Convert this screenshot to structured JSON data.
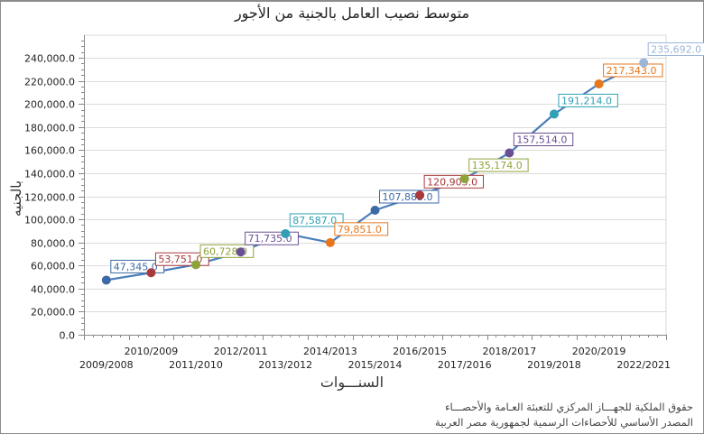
{
  "title": "متوسط نصيب العامل بالجنية من الأجور",
  "footer": {
    "line1": "حقوق الملكية للجهـــاز المركزي للتعبئة العـامة والأحصـــاء",
    "line2": "المصدر الأساسي للأحصاءات الرسمية لجمهورية مصر العربية"
  },
  "chart_data": {
    "type": "line",
    "title": "متوسط نصيب العامل بالجنية من الأجور",
    "xlabel": "السنـــوات",
    "ylabel": "بالجنيه",
    "ylim": [
      0,
      240000
    ],
    "yticks": [
      "0.0",
      "20,000.0",
      "40,000.0",
      "60,000.0",
      "80,000.0",
      "100,000.0",
      "120,000.0",
      "140,000.0",
      "160,000.0",
      "180,000.0",
      "200,000.0",
      "220,000.0",
      "240,000.0"
    ],
    "grid": true,
    "legend": "none",
    "categories": [
      "2009/2008",
      "2010/2009",
      "2011/2010",
      "2012/2011",
      "2013/2012",
      "2014/2013",
      "2015/2014",
      "2016/2015",
      "2017/2016",
      "2018/2017",
      "2019/2018",
      "2020/2019",
      "2022/2021"
    ],
    "values": [
      47345,
      53751,
      60728,
      71735,
      87587,
      79851,
      107883,
      120905,
      135174,
      157514,
      191214,
      217343,
      235692
    ],
    "value_labels": [
      "47,345.0",
      "53,751.0",
      "60,728.0",
      "71,735.0",
      "87,587.0",
      "79,851.0",
      "107,883.0",
      "120,905.0",
      "135,174.0",
      "157,514.0",
      "191,214.0",
      "217,343.0",
      "235,692.0"
    ],
    "point_colors": [
      "#3c6aa5",
      "#a8393c",
      "#8ea33a",
      "#6b4f94",
      "#31a0b4",
      "#e7761c",
      "#3c6aa5",
      "#a8393c",
      "#8ea33a",
      "#6b4f94",
      "#31a0b4",
      "#e7761c",
      "#9db5d8"
    ],
    "line_color": "#4a7ebb"
  }
}
